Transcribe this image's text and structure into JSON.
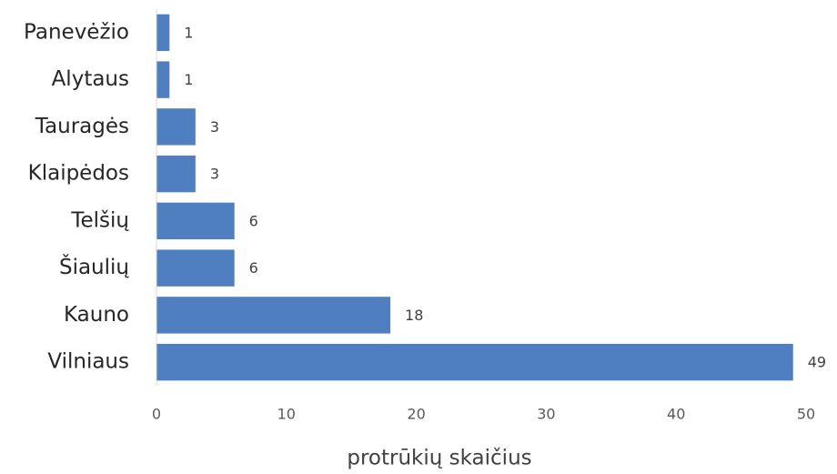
{
  "chart_data": {
    "type": "bar",
    "orientation": "horizontal",
    "x_label": "protrūkių skaičius",
    "categories": [
      "Panevėžio",
      "Alytaus",
      "Tauragės",
      "Klaipėdos",
      "Telšių",
      "Šiaulių",
      "Kauno",
      "Vilniaus"
    ],
    "values": [
      1,
      1,
      3,
      3,
      6,
      6,
      18,
      49
    ],
    "color": "#4f7fc0",
    "xlim": [
      0,
      50
    ],
    "xticks": [
      0,
      10,
      20,
      30,
      40,
      50
    ],
    "grid": false
  }
}
